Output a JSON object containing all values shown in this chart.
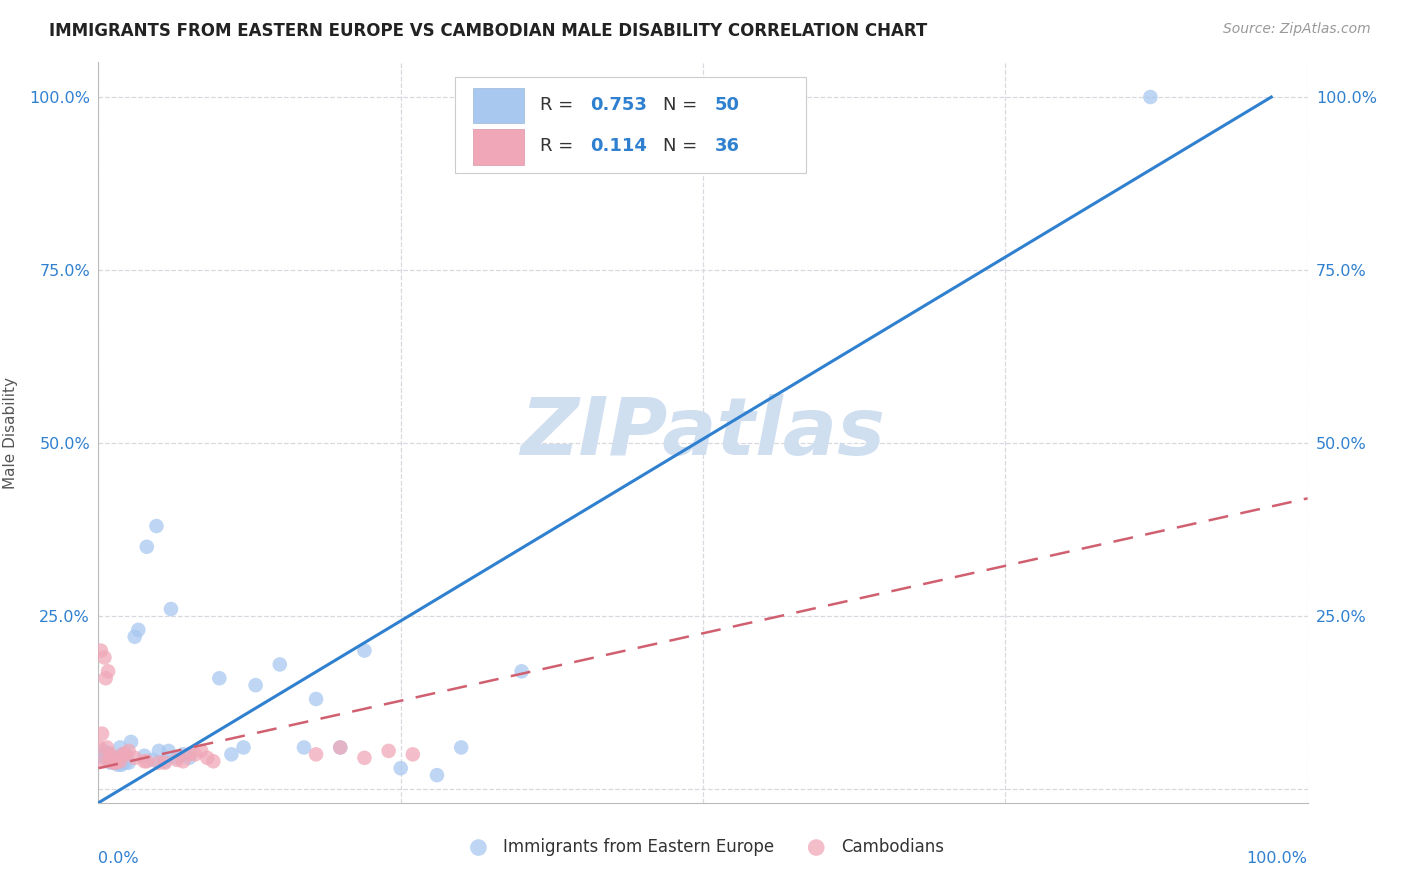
{
  "title": "IMMIGRANTS FROM EASTERN EUROPE VS CAMBODIAN MALE DISABILITY CORRELATION CHART",
  "source": "Source: ZipAtlas.com",
  "ylabel": "Male Disability",
  "xlim": [
    0.0,
    1.0
  ],
  "ylim": [
    -0.02,
    1.05
  ],
  "blue_R": 0.753,
  "blue_N": 50,
  "pink_R": 0.114,
  "pink_N": 36,
  "blue_color": "#a8c8f0",
  "pink_color": "#f0a8b8",
  "blue_line_color": "#3080d0",
  "pink_line_color": "#d06070",
  "grid_color": "#d8d8e0",
  "watermark_color": "#d0dff0",
  "blue_line_x0": 0.0,
  "blue_line_y0": -0.02,
  "blue_line_x1": 0.97,
  "blue_line_y1": 1.0,
  "pink_line_x0": 0.0,
  "pink_line_y0": 0.03,
  "pink_line_x1": 1.0,
  "pink_line_y1": 0.42,
  "blue_scatter_x": [
    0.002,
    0.003,
    0.004,
    0.005,
    0.006,
    0.007,
    0.008,
    0.009,
    0.01,
    0.011,
    0.012,
    0.013,
    0.014,
    0.015,
    0.016,
    0.017,
    0.018,
    0.019,
    0.02,
    0.022,
    0.023,
    0.025,
    0.027,
    0.03,
    0.033,
    0.038,
    0.04,
    0.045,
    0.048,
    0.05,
    0.055,
    0.058,
    0.06,
    0.065,
    0.07,
    0.075,
    0.1,
    0.11,
    0.12,
    0.13,
    0.15,
    0.17,
    0.18,
    0.2,
    0.22,
    0.25,
    0.28,
    0.3,
    0.35,
    0.87
  ],
  "blue_scatter_y": [
    0.05,
    0.048,
    0.055,
    0.045,
    0.05,
    0.048,
    0.052,
    0.04,
    0.038,
    0.042,
    0.044,
    0.038,
    0.04,
    0.042,
    0.035,
    0.038,
    0.06,
    0.035,
    0.05,
    0.038,
    0.05,
    0.038,
    0.068,
    0.22,
    0.23,
    0.048,
    0.35,
    0.042,
    0.38,
    0.055,
    0.04,
    0.055,
    0.26,
    0.045,
    0.05,
    0.045,
    0.16,
    0.05,
    0.06,
    0.15,
    0.18,
    0.06,
    0.13,
    0.06,
    0.2,
    0.03,
    0.02,
    0.06,
    0.17,
    1.0
  ],
  "pink_scatter_x": [
    0.001,
    0.002,
    0.003,
    0.004,
    0.005,
    0.006,
    0.007,
    0.008,
    0.009,
    0.01,
    0.011,
    0.012,
    0.013,
    0.014,
    0.015,
    0.018,
    0.02,
    0.022,
    0.025,
    0.03,
    0.038,
    0.04,
    0.05,
    0.055,
    0.065,
    0.07,
    0.075,
    0.08,
    0.085,
    0.09,
    0.095,
    0.18,
    0.2,
    0.22,
    0.24,
    0.26
  ],
  "pink_scatter_y": [
    0.06,
    0.2,
    0.08,
    0.04,
    0.19,
    0.16,
    0.06,
    0.17,
    0.04,
    0.05,
    0.045,
    0.04,
    0.038,
    0.038,
    0.042,
    0.04,
    0.05,
    0.05,
    0.055,
    0.045,
    0.04,
    0.04,
    0.038,
    0.038,
    0.042,
    0.04,
    0.05,
    0.05,
    0.055,
    0.045,
    0.04,
    0.05,
    0.06,
    0.045,
    0.055,
    0.05
  ]
}
